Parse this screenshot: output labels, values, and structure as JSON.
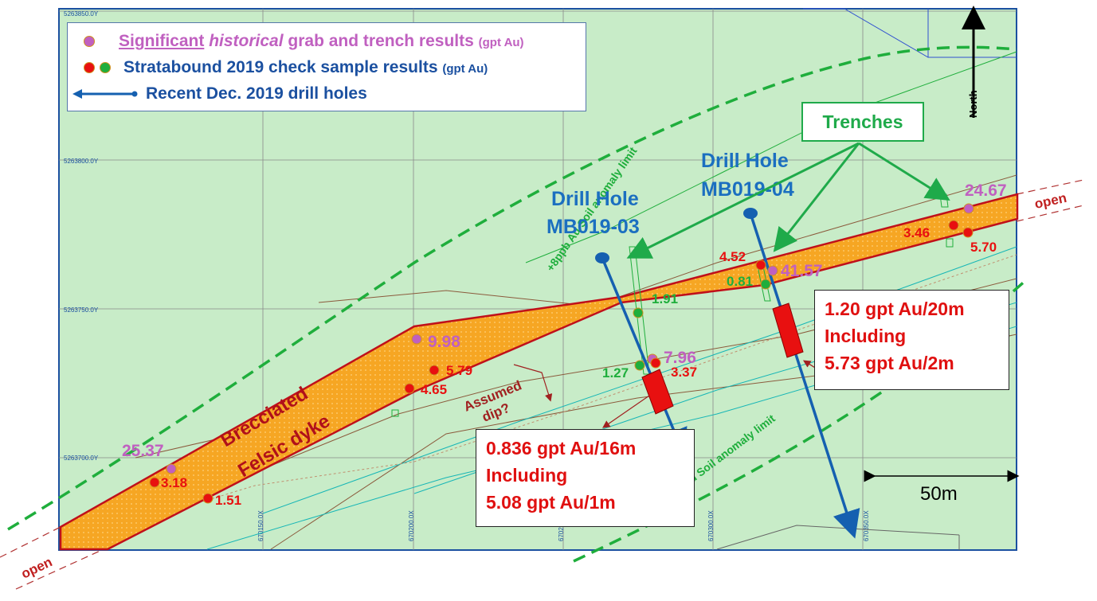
{
  "legend": {
    "historical_prefix": "Significant",
    "historical_italic": "historical",
    "historical_suffix": "grab and trench results",
    "historical_unit": "(gpt Au)",
    "check_label": "Stratabound 2019 check sample results",
    "check_unit": "(gpt Au)",
    "drill_label": "Recent Dec. 2019 drill holes"
  },
  "colors": {
    "background": "#c8ecc8",
    "dyke_fill": "#f6a623",
    "dyke_outline": "#c0101a",
    "historical_dot": "#c060c0",
    "check_red_dot": "#e81010",
    "check_green_dot": "#1fae3c",
    "drill_hole": "#1560b0",
    "soil_limit": "#1fae3c",
    "intercept": "#e81010"
  },
  "grid_labels": {
    "northings": [
      "5263850.0Y",
      "5263800.0Y",
      "5263750.0Y",
      "5263700.0Y"
    ],
    "eastings": [
      "670150.0X",
      "670200.0X",
      "670250.0X",
      "670300.0X",
      "670350.0X"
    ]
  },
  "north_label": "North",
  "scale_label": "50m",
  "trenches_label": "Trenches",
  "soil_limit_label": "+8ppb Au Soil anomaly limit",
  "open_label": "open",
  "dyke_label_line1": "Brecciated",
  "dyke_label_line2": "Felsic dyke",
  "assumed_dip_line1": "Assumed",
  "assumed_dip_line2": "dip?",
  "drill_holes": [
    {
      "line1": "Drill Hole",
      "line2": "MB019-03"
    },
    {
      "line1": "Drill Hole",
      "line2": "MB019-04"
    }
  ],
  "intercepts": [
    {
      "line1": "0.836 gpt Au/16m",
      "line2": "Including",
      "line3": "5.08 gpt Au/1m"
    },
    {
      "line1": "1.20 gpt Au/20m",
      "line2": "Including",
      "line3": "5.73 gpt Au/2m"
    }
  ],
  "samples": {
    "historical": [
      "25.37",
      "9.98",
      "7.96",
      "41.57",
      "24.67"
    ],
    "check_red": [
      "3.18",
      "1.51",
      "5.79",
      "4.65",
      "3.37",
      "4.52",
      "3.46",
      "5.70"
    ],
    "check_green": [
      "1.27",
      "1.91",
      "0.81"
    ]
  }
}
